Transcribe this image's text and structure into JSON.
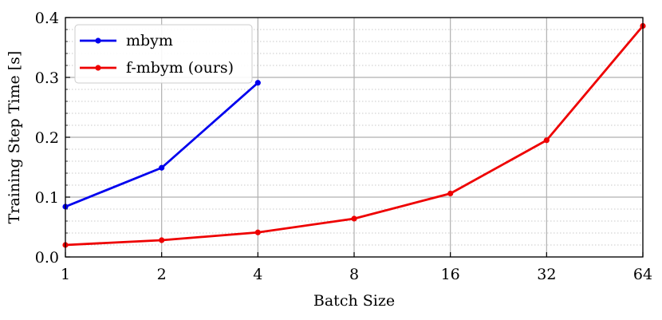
{
  "chart_data": {
    "type": "line",
    "xlabel": "Batch Size",
    "ylabel": "Training Step Time [s]",
    "x_scale": "log2",
    "xlim": [
      1,
      64
    ],
    "ylim": [
      0,
      0.4
    ],
    "x_ticks": [
      "1",
      "2",
      "4",
      "8",
      "16",
      "32",
      "64"
    ],
    "x_tick_values": [
      1,
      2,
      4,
      8,
      16,
      32,
      64
    ],
    "y_ticks": [
      "0.0",
      "0.1",
      "0.2",
      "0.3",
      "0.4"
    ],
    "y_tick_values": [
      0,
      0.1,
      0.2,
      0.3,
      0.4
    ],
    "grid": true,
    "legend_position": "top-left",
    "series": [
      {
        "name": "mbym",
        "color": "#0000ee",
        "x": [
          1,
          2,
          4
        ],
        "y": [
          0.084,
          0.149,
          0.291
        ]
      },
      {
        "name": "f-mbym (ours)",
        "color": "#ee0000",
        "x": [
          1,
          2,
          4,
          8,
          16,
          32,
          64
        ],
        "y": [
          0.02,
          0.028,
          0.041,
          0.064,
          0.106,
          0.195,
          0.386
        ]
      }
    ]
  }
}
